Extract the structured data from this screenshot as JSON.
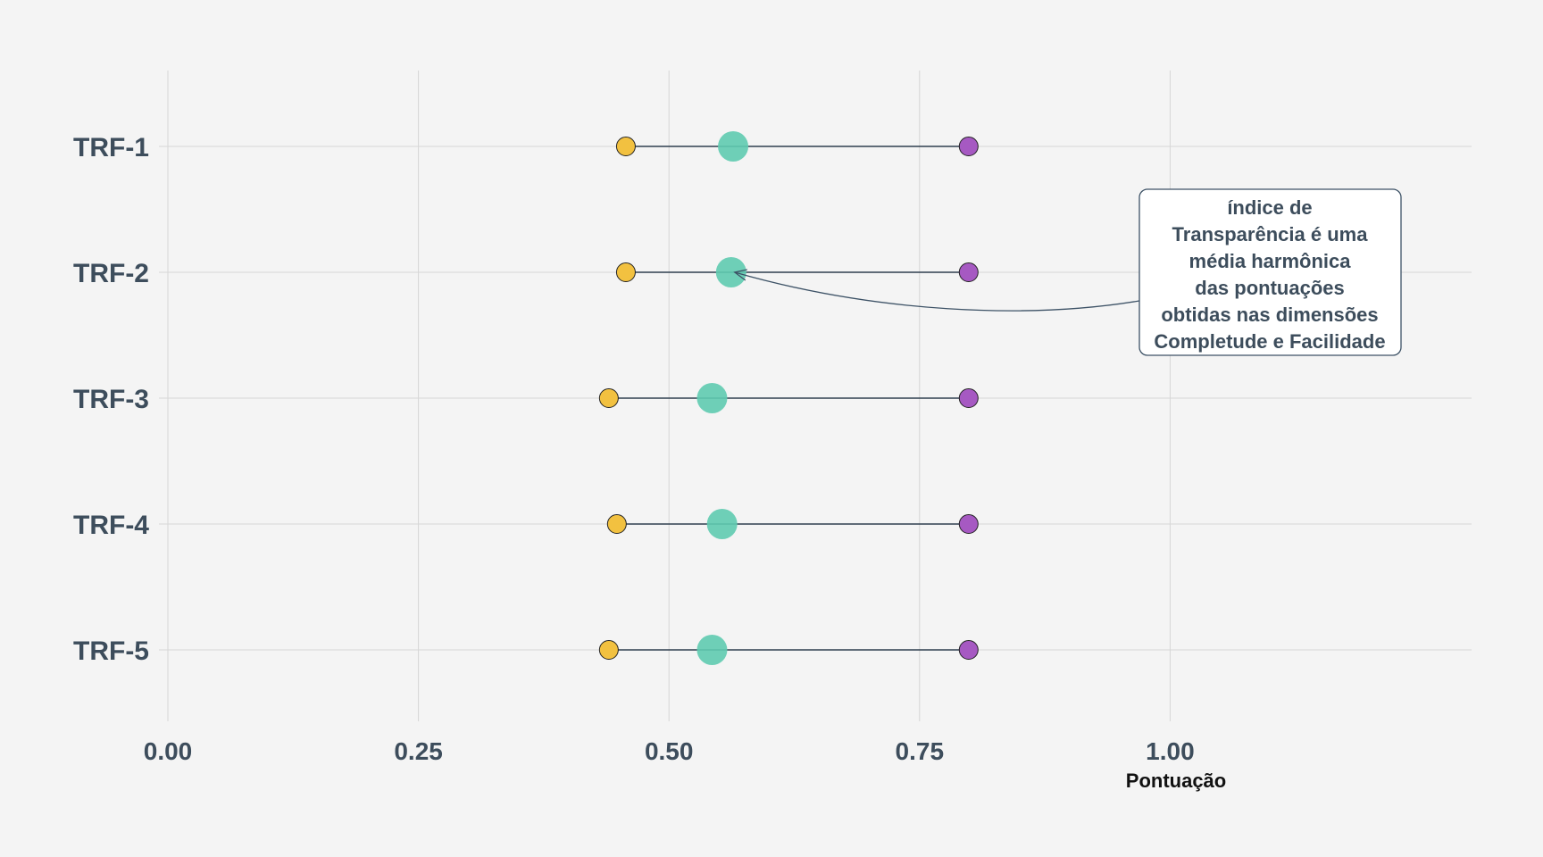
{
  "chart_data": {
    "type": "dumbbell",
    "categories": [
      "TRF-1",
      "TRF-2",
      "TRF-3",
      "TRF-4",
      "TRF-5"
    ],
    "series": [
      {
        "values": [
          0.457,
          0.457,
          0.44,
          0.448,
          0.44
        ],
        "color": "#f2c140"
      },
      {
        "values": [
          0.564,
          0.562,
          0.543,
          0.553,
          0.543
        ],
        "color": "#5fcbb0"
      },
      {
        "values": [
          0.799,
          0.799,
          0.799,
          0.799,
          0.799
        ],
        "color": "#a659c2"
      }
    ],
    "xlabel": "Pontuação",
    "xticks": [
      "0.00",
      "0.25",
      "0.50",
      "0.75",
      "1.00"
    ],
    "tick_values": [
      0,
      0.25,
      0.5,
      0.75,
      1.0
    ],
    "xlim": [
      -0.0,
      1.3
    ],
    "grid": true,
    "annotation": {
      "lines": [
        "índice de",
        "Transparência é uma",
        "média harmônica",
        "das pontuações",
        "obtidas nas dimensões",
        "Completude e Facilidade"
      ],
      "points_to": "TRF-2"
    },
    "colors": {
      "background": "#f4f4f4",
      "grid": "#d6d6d6",
      "text": "#3d4d5c",
      "segment": "#2f3f4f"
    }
  }
}
